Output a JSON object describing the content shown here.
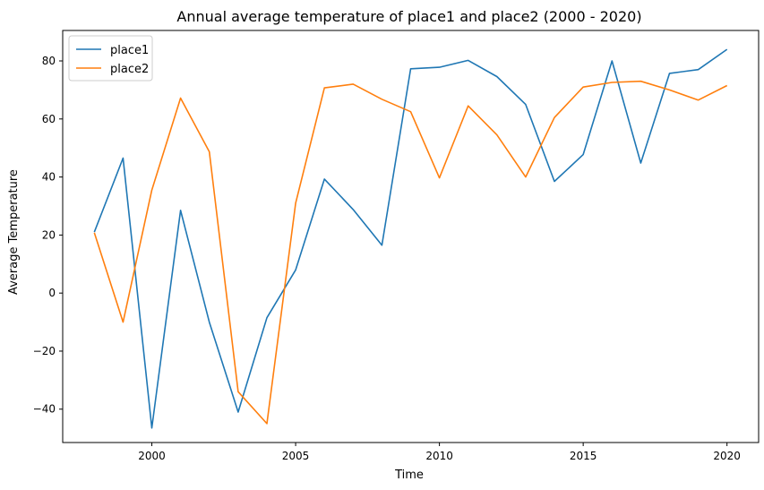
{
  "chart_data": {
    "type": "line",
    "title": "Annual average temperature of place1 and place2 (2000 - 2020)",
    "xlabel": "Time",
    "ylabel": "Average Temperature",
    "x": [
      1998,
      1999,
      2000,
      2001,
      2002,
      2003,
      2004,
      2005,
      2006,
      2007,
      2008,
      2009,
      2010,
      2011,
      2012,
      2013,
      2014,
      2015,
      2016,
      2017,
      2018,
      2019,
      2020
    ],
    "xlim": [
      1996.9,
      2021.1
    ],
    "ylim": [
      -51.5,
      90.5
    ],
    "xticks": [
      2000,
      2005,
      2010,
      2015,
      2020
    ],
    "yticks": [
      -40,
      -20,
      0,
      20,
      40,
      60,
      80
    ],
    "grid": false,
    "legend_position": "upper left",
    "series": [
      {
        "name": "place1",
        "color": "#1f77b4",
        "values": [
          21,
          46.5,
          -46.5,
          28.5,
          -10,
          -41,
          -8.5,
          8,
          39.3,
          28.8,
          16.5,
          77.3,
          77.8,
          80.2,
          74.6,
          65,
          38.5,
          47.7,
          80,
          44.8,
          75.7,
          77,
          84
        ]
      },
      {
        "name": "place2",
        "color": "#ff7f0e",
        "values": [
          20.8,
          -10,
          35.5,
          67.2,
          48.7,
          -34,
          -45,
          31,
          70.7,
          72,
          66.8,
          62.5,
          39.7,
          64.5,
          54.5,
          40,
          60.5,
          71,
          72.6,
          73,
          70,
          66.5,
          71.5
        ]
      }
    ]
  }
}
